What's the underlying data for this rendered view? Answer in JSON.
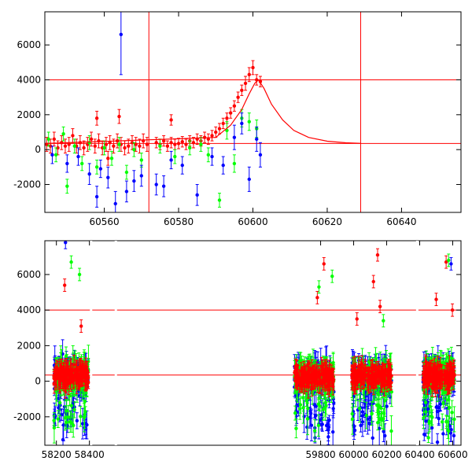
{
  "chart_data": [
    {
      "type": "scatter",
      "panel": "top",
      "title": "",
      "xlabel": "",
      "ylabel": "",
      "xlim": [
        60544,
        60656
      ],
      "ylim": [
        -3600,
        7900
      ],
      "x_ticks": [
        "60560",
        "60580",
        "60600",
        "60620",
        "60640"
      ],
      "x_tick_values": [
        60560,
        60580,
        60600,
        60620,
        60640
      ],
      "y_ticks": [
        "-2000",
        "0",
        "2000",
        "4000",
        "6000"
      ],
      "y_tick_values": [
        -2000,
        0,
        2000,
        4000,
        6000
      ],
      "horizontal_lines": [
        4000,
        350
      ],
      "vertical_lines": [
        60572,
        60629
      ],
      "series": [
        {
          "color": "#ff0000",
          "marker": "filled-circle",
          "error_bars": true,
          "x": [
            60544.5,
            60545.5,
            60546.5,
            60547.5,
            60548.5,
            60549.5,
            60550.5,
            60551.5,
            60552.5,
            60553.5,
            60554.5,
            60555.5,
            60556.5,
            60557.5,
            60558.5,
            60559.5,
            60560.5,
            60561.5,
            60562.5,
            60563.5,
            60564.5,
            60565.5,
            60566.5,
            60567.5,
            60568.5,
            60569.5,
            60570.5,
            60571.5,
            60574,
            60575,
            60576,
            60577,
            60578,
            60579,
            60580,
            60581,
            60582,
            60583,
            60584,
            60585,
            60586,
            60587,
            60588,
            60589,
            60590,
            60591,
            60592,
            60593,
            60594,
            60595,
            60596,
            60597,
            60598,
            60599,
            60600,
            60601,
            60602,
            60564,
            60558,
            60578,
            60561
          ],
          "y": [
            300,
            200,
            600,
            100,
            400,
            200,
            300,
            800,
            200,
            400,
            100,
            300,
            600,
            200,
            500,
            100,
            300,
            400,
            200,
            500,
            300,
            100,
            200,
            400,
            300,
            200,
            500,
            300,
            400,
            300,
            500,
            200,
            400,
            300,
            350,
            450,
            300,
            500,
            400,
            600,
            500,
            700,
            600,
            800,
            1000,
            1200,
            1500,
            1800,
            2100,
            2500,
            3000,
            3400,
            3800,
            4300,
            4700,
            4000,
            3900,
            1900,
            1800,
            1700,
            -500
          ],
          "y_err": [
            400,
            400,
            400,
            400,
            400,
            400,
            400,
            400,
            400,
            400,
            400,
            400,
            400,
            400,
            400,
            400,
            400,
            400,
            400,
            400,
            400,
            400,
            400,
            400,
            400,
            400,
            400,
            400,
            300,
            300,
            300,
            300,
            300,
            300,
            300,
            300,
            300,
            300,
            300,
            300,
            300,
            300,
            300,
            300,
            300,
            300,
            300,
            300,
            300,
            300,
            300,
            300,
            400,
            400,
            400,
            300,
            300,
            400,
            400,
            300,
            400
          ]
        },
        {
          "color": "#00ff00",
          "marker": "filled-circle",
          "error_bars": true,
          "x": [
            60545,
            60547,
            60549,
            60550,
            60552,
            60554,
            60556,
            60558,
            60560,
            60562,
            60564,
            60566,
            60568,
            60570,
            60575,
            60579,
            60583,
            60586,
            60588,
            60591,
            60593,
            60595,
            60597,
            60599,
            60601
          ],
          "y": [
            600,
            -300,
            900,
            -2100,
            200,
            -800,
            400,
            -1000,
            100,
            -500,
            300,
            -1300,
            0,
            -600,
            200,
            -400,
            100,
            300,
            -300,
            -2900,
            1100,
            -800,
            1800,
            1600,
            1200
          ],
          "y_err": [
            400,
            400,
            400,
            400,
            400,
            400,
            400,
            400,
            400,
            400,
            400,
            400,
            400,
            400,
            400,
            400,
            400,
            400,
            400,
            400,
            500,
            500,
            500,
            500,
            500
          ]
        },
        {
          "color": "#0000ff",
          "marker": "filled-circle",
          "error_bars": true,
          "x": [
            60546,
            60550,
            60553,
            60556,
            60558,
            60559,
            60561,
            60563,
            60564.5,
            60566,
            60568,
            60570,
            60574,
            60576,
            60578,
            60581,
            60585,
            60589,
            60592,
            60595,
            60597,
            60599,
            60601,
            60602
          ],
          "y": [
            -300,
            -800,
            -400,
            -1400,
            -2700,
            -1100,
            -1600,
            -3100,
            6600,
            -2400,
            -1800,
            -1500,
            -2000,
            -2100,
            -600,
            -900,
            -2600,
            -400,
            -900,
            700,
            1500,
            -1700,
            600,
            -300
          ],
          "y_err": [
            500,
            500,
            500,
            600,
            600,
            500,
            600,
            700,
            2300,
            600,
            600,
            600,
            600,
            600,
            500,
            500,
            600,
            500,
            500,
            700,
            600,
            700,
            700,
            700
          ]
        }
      ],
      "model_curve": {
        "color": "#ff0000",
        "x": [
          60544,
          60590,
          60594,
          60597,
          60599,
          60600.5,
          60601.5,
          60603,
          60605,
          60608,
          60611,
          60615,
          60620,
          60625,
          60629
        ],
        "y": [
          350,
          700,
          1400,
          2300,
          3200,
          3800,
          4000,
          3500,
          2600,
          1700,
          1100,
          700,
          480,
          390,
          360
        ]
      }
    },
    {
      "type": "scatter",
      "panel": "bottom",
      "title": "",
      "xlabel": "",
      "ylabel": "",
      "xlim": [
        58130,
        60650
      ],
      "ylim": [
        -3600,
        7900
      ],
      "axis_breaks": [
        58410,
        58560,
        60385
      ],
      "x_ticks": [
        "58200",
        "58400",
        "59800",
        "60000",
        "60200",
        "60400",
        "60600"
      ],
      "x_tick_values": [
        58200,
        58400,
        59800,
        60000,
        60200,
        60400,
        60600
      ],
      "y_ticks": [
        "-2000",
        "0",
        "2000",
        "4000",
        "6000"
      ],
      "y_tick_values": [
        -2000,
        0,
        2000,
        4000,
        6000
      ],
      "horizontal_lines": [
        4000,
        350
      ],
      "seasons": [
        [
          58185,
          58395
        ],
        [
          59640,
          59880
        ],
        [
          59990,
          60230
        ],
        [
          60420,
          60610
        ]
      ],
      "series_colors": [
        "#0000ff",
        "#00ff00",
        "#ff0000"
      ],
      "season_band_center": 300,
      "season_band_halfwidth": 700,
      "outliers": [
        {
          "color": "#ff0000",
          "x": 58250,
          "y": 5400
        },
        {
          "color": "#ff0000",
          "x": 58350,
          "y": 3100
        },
        {
          "color": "#00ff00",
          "x": 58290,
          "y": 6700
        },
        {
          "color": "#00ff00",
          "x": 58340,
          "y": 6000
        },
        {
          "color": "#0000ff",
          "x": 58255,
          "y": 7800
        },
        {
          "color": "#ff0000",
          "x": 59780,
          "y": 4700
        },
        {
          "color": "#ff0000",
          "x": 59820,
          "y": 6600
        },
        {
          "color": "#00ff00",
          "x": 59790,
          "y": 5300
        },
        {
          "color": "#00ff00",
          "x": 59870,
          "y": 5900
        },
        {
          "color": "#ff0000",
          "x": 60120,
          "y": 5600
        },
        {
          "color": "#ff0000",
          "x": 60145,
          "y": 7100
        },
        {
          "color": "#ff0000",
          "x": 60160,
          "y": 4200
        },
        {
          "color": "#ff0000",
          "x": 60020,
          "y": 3500
        },
        {
          "color": "#00ff00",
          "x": 60180,
          "y": 3400
        },
        {
          "color": "#ff0000",
          "x": 60500,
          "y": 4600
        },
        {
          "color": "#ff0000",
          "x": 60560,
          "y": 6700
        },
        {
          "color": "#00ff00",
          "x": 60575,
          "y": 6800
        },
        {
          "color": "#0000ff",
          "x": 60590,
          "y": 6600
        },
        {
          "color": "#ff0000",
          "x": 60598,
          "y": 4000
        }
      ]
    }
  ]
}
